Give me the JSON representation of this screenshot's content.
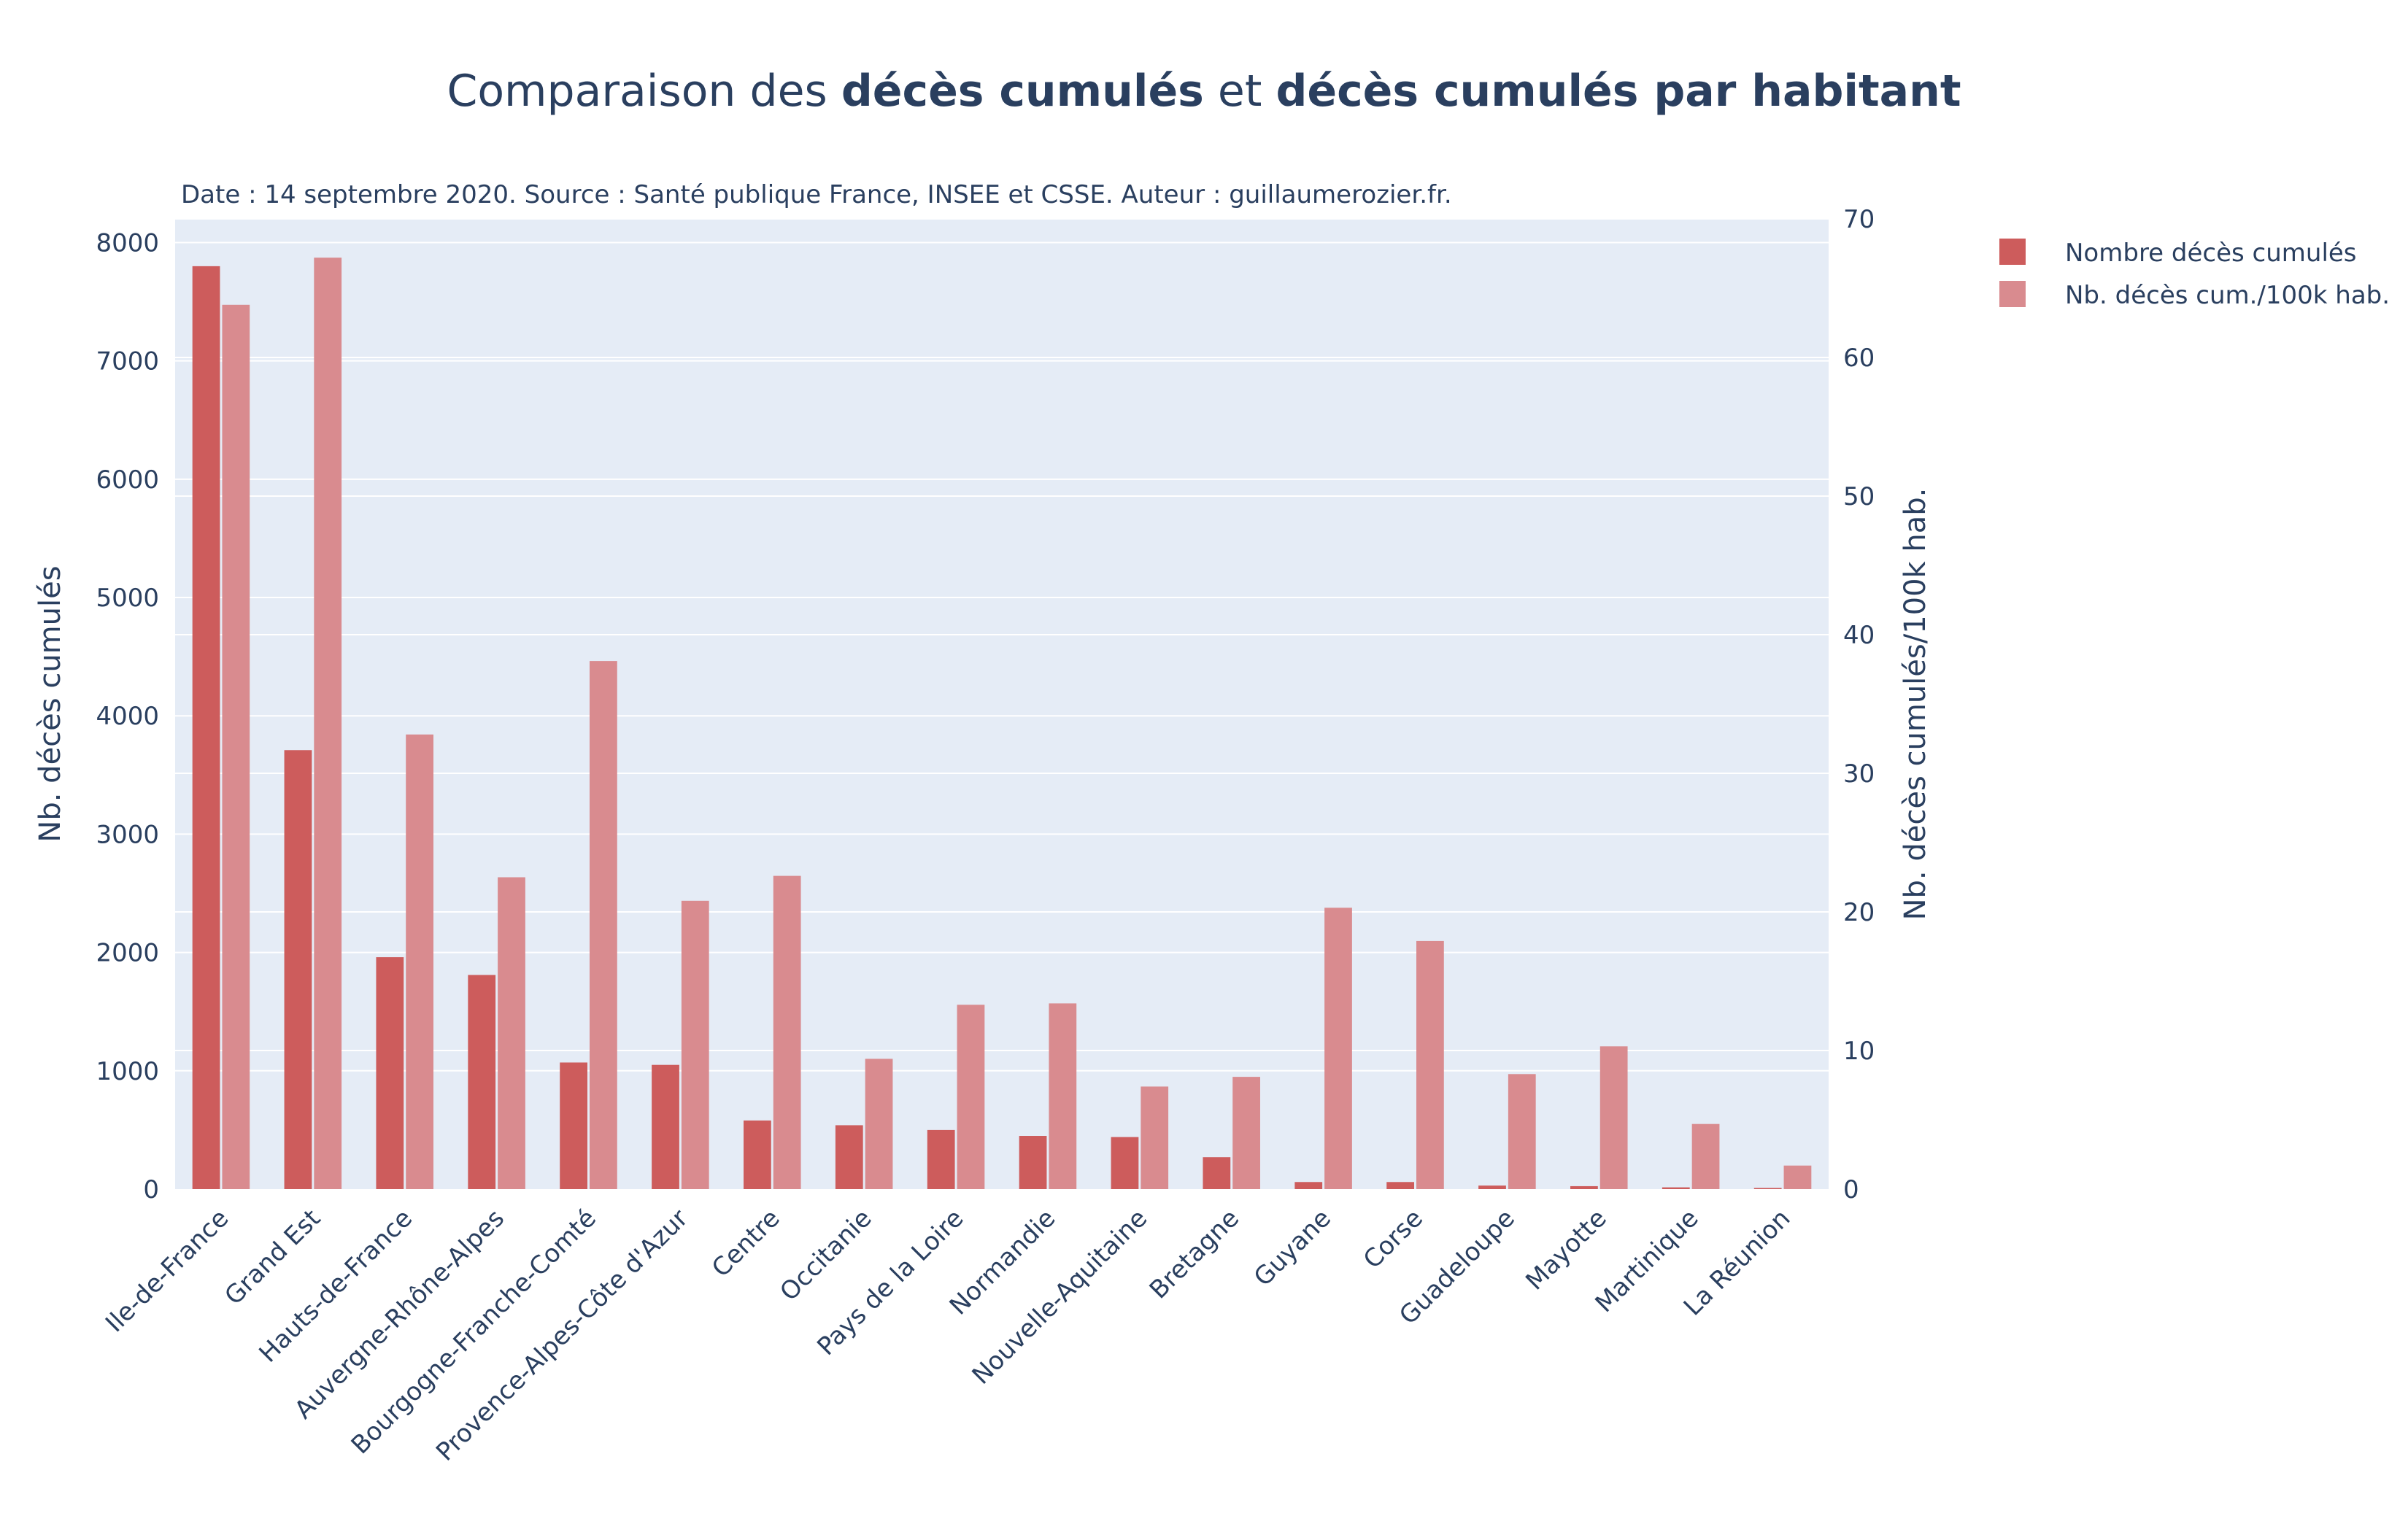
{
  "title": {
    "part1": "Comparaison des ",
    "part2": "décès cumulés",
    "part3": " et ",
    "part4": "décès cumulés par habitant"
  },
  "subtitle": "Date : 14 septembre 2020. Source : Santé publique France, INSEE et CSSE. Auteur : guillaumerozier.fr.",
  "colors": {
    "plot_bg": "#e5ecf6",
    "grid": "#ffffff",
    "series1": "#cd5c5c",
    "series2": "#d98b8f",
    "text": "#2a3f5f"
  },
  "chart_data": {
    "type": "bar",
    "categories": [
      "Ile-de-France",
      "Grand Est",
      "Hauts-de-France",
      "Auvergne-Rhône-Alpes",
      "Bourgogne-Franche-Comté",
      "Provence-Alpes-Côte d'Azur",
      "Centre",
      "Occitanie",
      "Pays de la Loire",
      "Normandie",
      "Nouvelle-Aquitaine",
      "Bretagne",
      "Guyane",
      "Corse",
      "Guadeloupe",
      "Mayotte",
      "Martinique",
      "La Réunion"
    ],
    "series": [
      {
        "name": "Nombre décès cumulés",
        "axis": "left",
        "values": [
          7800,
          3710,
          1960,
          1810,
          1070,
          1050,
          580,
          540,
          500,
          450,
          440,
          270,
          60,
          60,
          30,
          25,
          15,
          10
        ]
      },
      {
        "name": "Nb. décès cum./100k hab.",
        "axis": "right",
        "values": [
          63.8,
          67.2,
          32.8,
          22.5,
          38.1,
          20.8,
          22.6,
          9.4,
          13.3,
          13.4,
          7.4,
          8.1,
          20.3,
          17.9,
          8.3,
          10.3,
          4.7,
          1.7
        ]
      }
    ],
    "ylabel": "Nb. décès cumulés",
    "ylabel_right": "Nb. décès cumulés/100k hab.",
    "ylim": [
      0,
      8200
    ],
    "ylim_right": [
      0,
      70
    ],
    "yticks": [
      0,
      1000,
      2000,
      3000,
      4000,
      5000,
      6000,
      7000,
      8000
    ],
    "yticks_right": [
      0,
      10,
      20,
      30,
      40,
      50,
      60,
      70
    ],
    "grid": true,
    "legend_position": "top-right"
  }
}
